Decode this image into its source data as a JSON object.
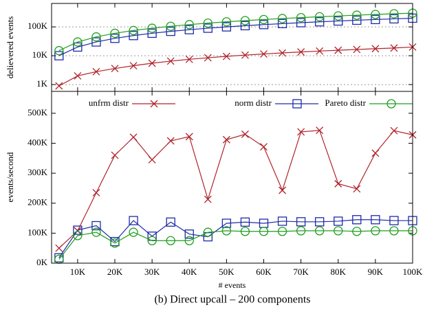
{
  "chart_data": [
    {
      "type": "line",
      "ylabel": "delievered events",
      "log_y": true,
      "grid": true,
      "x": [
        5000,
        10000,
        15000,
        20000,
        25000,
        30000,
        35000,
        40000,
        45000,
        50000,
        55000,
        60000,
        65000,
        70000,
        75000,
        80000,
        85000,
        90000,
        95000,
        100000
      ],
      "xlim": [
        3000,
        100000
      ],
      "ylim": [
        580,
        650000
      ],
      "yticks": [
        {
          "value": 1000,
          "label": "1K"
        },
        {
          "value": 10000,
          "label": "10K"
        },
        {
          "value": 100000,
          "label": "100K"
        }
      ],
      "series": [
        {
          "name": "unfrm distr",
          "color": "#b0232b",
          "marker": "x",
          "values": [
            900,
            2000,
            2800,
            3600,
            4500,
            5500,
            6500,
            7500,
            8500,
            9500,
            10500,
            11500,
            12500,
            13500,
            14500,
            15500,
            16500,
            17500,
            18500,
            20000
          ]
        },
        {
          "name": "norm distr",
          "color": "#1c2aa8",
          "marker": "square",
          "values": [
            10000,
            20000,
            30000,
            40000,
            50000,
            60000,
            70000,
            80000,
            90000,
            100000,
            110000,
            120000,
            130000,
            140000,
            150000,
            160000,
            170000,
            180000,
            190000,
            200000
          ]
        },
        {
          "name": "Pareto distr",
          "color": "#1e9e1e",
          "marker": "circle",
          "values": [
            15000,
            30000,
            45000,
            60000,
            75000,
            90000,
            105000,
            120000,
            135000,
            150000,
            165000,
            180000,
            195000,
            210000,
            225000,
            240000,
            255000,
            270000,
            285000,
            300000
          ]
        }
      ]
    },
    {
      "type": "line",
      "ylabel": "events/second",
      "xlabel": "# events",
      "legend": "top",
      "x": [
        5000,
        10000,
        15000,
        20000,
        25000,
        30000,
        35000,
        40000,
        45000,
        50000,
        55000,
        60000,
        65000,
        70000,
        75000,
        80000,
        85000,
        90000,
        95000,
        100000
      ],
      "xlim": [
        3000,
        100000
      ],
      "ylim": [
        0,
        573000
      ],
      "xticks": [
        {
          "value": 10000,
          "label": "10K"
        },
        {
          "value": 20000,
          "label": "20K"
        },
        {
          "value": 30000,
          "label": "30K"
        },
        {
          "value": 40000,
          "label": "40K"
        },
        {
          "value": 50000,
          "label": "50K"
        },
        {
          "value": 60000,
          "label": "60K"
        },
        {
          "value": 70000,
          "label": "70K"
        },
        {
          "value": 80000,
          "label": "80K"
        },
        {
          "value": 90000,
          "label": "90K"
        },
        {
          "value": 100000,
          "label": "100K"
        }
      ],
      "yticks": [
        {
          "value": 0,
          "label": "0K"
        },
        {
          "value": 100000,
          "label": "100K"
        },
        {
          "value": 200000,
          "label": "200K"
        },
        {
          "value": 300000,
          "label": "300K"
        },
        {
          "value": 400000,
          "label": "400K"
        },
        {
          "value": 500000,
          "label": "500K"
        }
      ],
      "series": [
        {
          "name": "unfrm distr",
          "color": "#b0232b",
          "marker": "x",
          "values": [
            50000,
            108000,
            235000,
            360000,
            420000,
            345000,
            408000,
            422000,
            213000,
            412000,
            430000,
            388000,
            243000,
            438000,
            443000,
            265000,
            248000,
            367000,
            442000,
            428000
          ]
        },
        {
          "name": "norm distr",
          "color": "#1c2aa8",
          "marker": "square",
          "values": [
            18000,
            110000,
            125000,
            72000,
            142000,
            90000,
            137000,
            97000,
            88000,
            133000,
            137000,
            133000,
            140000,
            138000,
            138000,
            140000,
            145000,
            145000,
            142000,
            142000
          ]
        },
        {
          "name": "Pareto distr",
          "color": "#1e9e1e",
          "marker": "circle",
          "values": [
            13000,
            92000,
            103000,
            67000,
            103000,
            75000,
            75000,
            75000,
            103000,
            108000,
            106000,
            106000,
            106000,
            108000,
            108000,
            108000,
            106000,
            108000,
            108000,
            108000
          ]
        }
      ]
    }
  ],
  "caption": "(b) Direct upcall – 200 components"
}
